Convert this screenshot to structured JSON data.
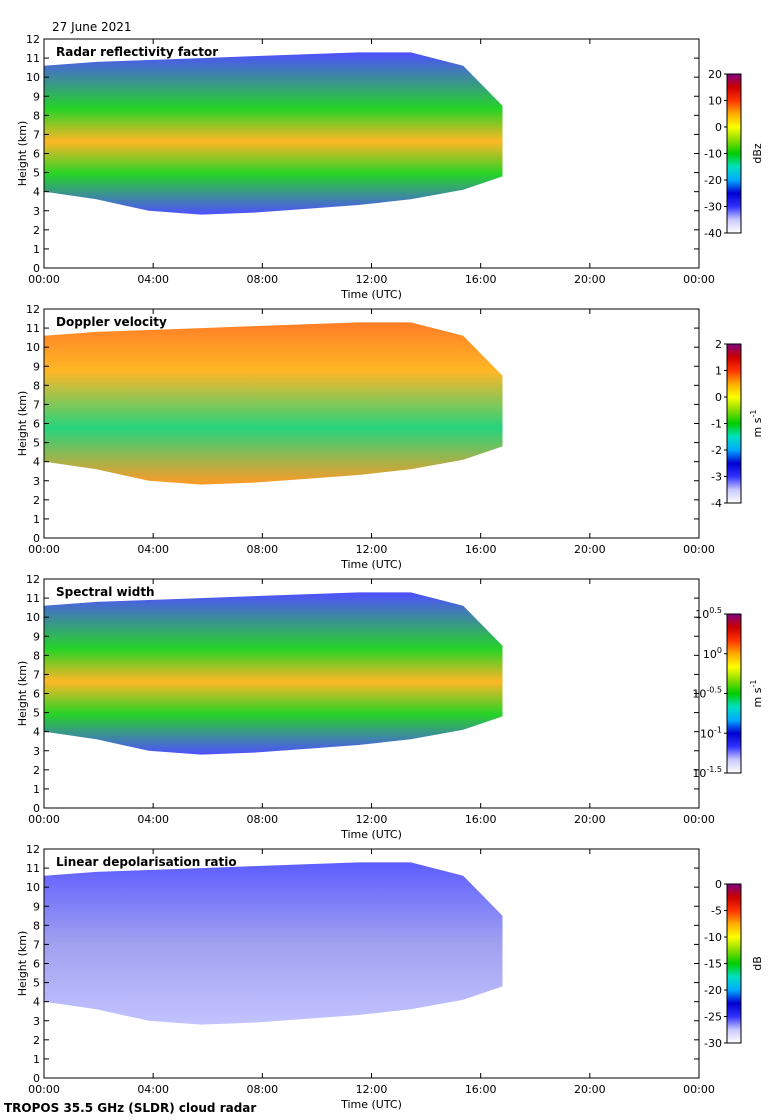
{
  "date_label": "27 June 2021",
  "footer_label": "TROPOS 35.5 GHz (SLDR) cloud radar",
  "chart_data": [
    {
      "type": "heatmap",
      "title": "Radar reflectivity factor",
      "xlabel": "Time (UTC)",
      "ylabel": "Height (km)",
      "x_ticks": [
        "00:00",
        "04:00",
        "08:00",
        "12:00",
        "16:00",
        "20:00",
        "00:00"
      ],
      "y_ticks": [
        "0",
        "1",
        "2",
        "3",
        "4",
        "5",
        "6",
        "7",
        "8",
        "9",
        "10",
        "11",
        "12"
      ],
      "ylim": [
        0,
        12
      ],
      "colorbar": {
        "label": "dBz",
        "ticks": [
          "20",
          "10",
          "0",
          "-10",
          "-20",
          "-30",
          "-40"
        ],
        "range": [
          -40,
          20
        ],
        "colormap": "rainbow"
      },
      "legend": "colorbar-right"
    },
    {
      "type": "heatmap",
      "title": "Doppler velocity",
      "xlabel": "Time (UTC)",
      "ylabel": "Height (km)",
      "x_ticks": [
        "00:00",
        "04:00",
        "08:00",
        "12:00",
        "16:00",
        "20:00",
        "00:00"
      ],
      "y_ticks": [
        "0",
        "1",
        "2",
        "3",
        "4",
        "5",
        "6",
        "7",
        "8",
        "9",
        "10",
        "11",
        "12"
      ],
      "ylim": [
        0,
        12
      ],
      "colorbar": {
        "label": "m s",
        "label_sup": "-1",
        "ticks": [
          "2",
          "1",
          "0",
          "-1",
          "-2",
          "-3",
          "-4"
        ],
        "range": [
          -4,
          2
        ],
        "colormap": "rainbow"
      },
      "legend": "colorbar-right"
    },
    {
      "type": "heatmap",
      "title": "Spectral width",
      "xlabel": "Time (UTC)",
      "ylabel": "Height (km)",
      "x_ticks": [
        "00:00",
        "04:00",
        "08:00",
        "12:00",
        "16:00",
        "20:00",
        "00:00"
      ],
      "y_ticks": [
        "0",
        "1",
        "2",
        "3",
        "4",
        "5",
        "6",
        "7",
        "8",
        "9",
        "10",
        "11",
        "12"
      ],
      "ylim": [
        0,
        12
      ],
      "colorbar": {
        "label": "m s",
        "label_sup": "-1",
        "ticks": [
          {
            "base": "10",
            "exp": "0.5"
          },
          {
            "base": "10",
            "exp": "0"
          },
          {
            "base": "10",
            "exp": "-0.5"
          },
          {
            "base": "10",
            "exp": "-1"
          },
          {
            "base": "10",
            "exp": "-1.5"
          }
        ],
        "range": [
          -1.5,
          0.5
        ],
        "scale": "log",
        "colormap": "rainbow"
      },
      "legend": "colorbar-right"
    },
    {
      "type": "heatmap",
      "title": "Linear depolarisation ratio",
      "xlabel": "Time (UTC)",
      "ylabel": "Height (km)",
      "x_ticks": [
        "00:00",
        "04:00",
        "08:00",
        "12:00",
        "16:00",
        "20:00",
        "00:00"
      ],
      "y_ticks": [
        "0",
        "1",
        "2",
        "3",
        "4",
        "5",
        "6",
        "7",
        "8",
        "9",
        "10",
        "11",
        "12"
      ],
      "ylim": [
        0,
        12
      ],
      "colorbar": {
        "label": "dB",
        "ticks": [
          "0",
          "-5",
          "-10",
          "-15",
          "-20",
          "-25",
          "-30"
        ],
        "range": [
          -30,
          0
        ],
        "colormap": "rainbow"
      },
      "legend": "colorbar-right"
    }
  ]
}
